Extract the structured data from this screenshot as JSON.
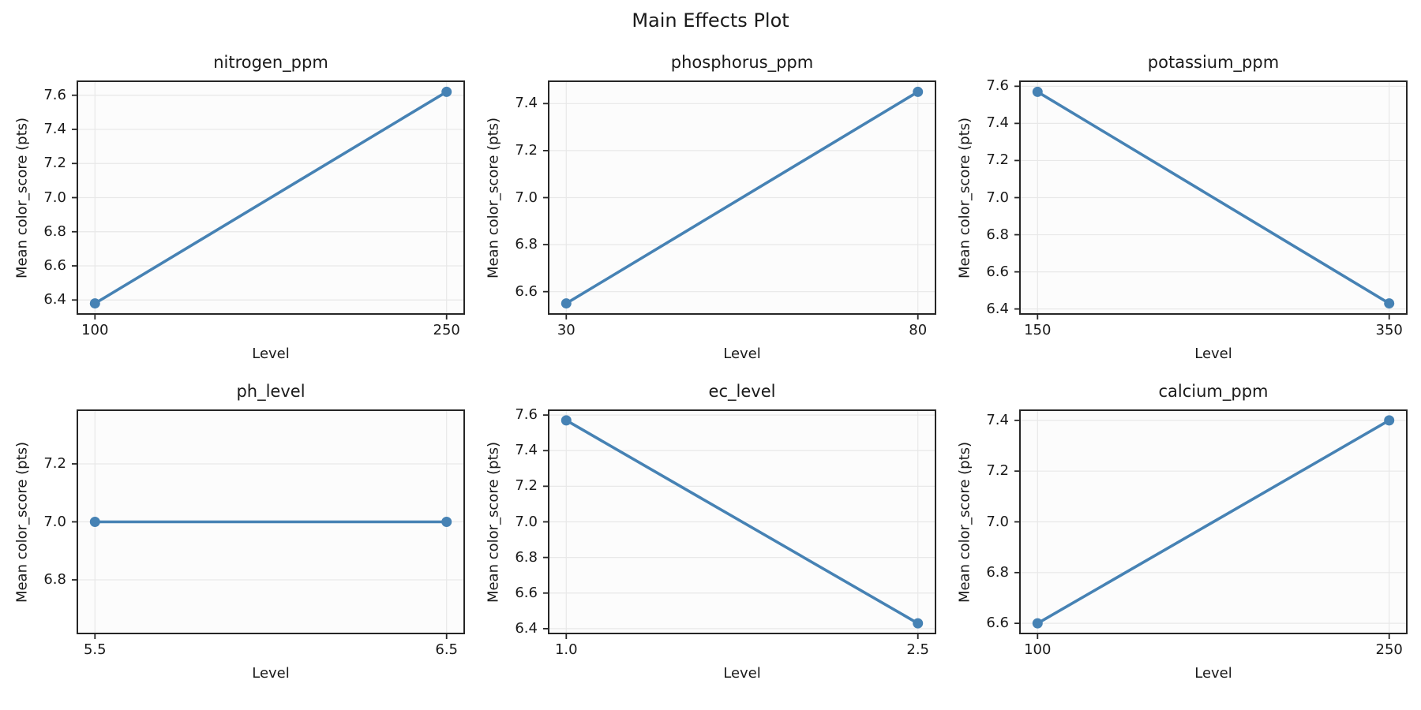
{
  "figure": {
    "suptitle": "Main Effects Plot"
  },
  "style": {
    "line_color": "#4682B4",
    "grid_color": "#e8e8e8",
    "spine_color": "#262626",
    "axes_bg": "#fcfcfc",
    "text_color": "#1a1a1a"
  },
  "chart_data": [
    {
      "type": "line",
      "title": "nitrogen_ppm",
      "xlabel": "Level",
      "ylabel": "Mean color_score (pts)",
      "x_tick_labels": [
        "100",
        "250"
      ],
      "x_values": [
        100,
        250
      ],
      "y_values": [
        6.38,
        7.62
      ],
      "yticks": [
        6.4,
        6.6,
        6.8,
        7.0,
        7.2,
        7.4,
        7.6
      ],
      "ytick_labels": [
        "6.4",
        "6.6",
        "6.8",
        "7.0",
        "7.2",
        "7.4",
        "7.6"
      ],
      "ylim": [
        6.318,
        7.682
      ],
      "grid": true,
      "legend": null
    },
    {
      "type": "line",
      "title": "phosphorus_ppm",
      "xlabel": "Level",
      "ylabel": "Mean color_score (pts)",
      "x_tick_labels": [
        "30",
        "80"
      ],
      "x_values": [
        30,
        80
      ],
      "y_values": [
        6.55,
        7.45
      ],
      "yticks": [
        6.6,
        6.8,
        7.0,
        7.2,
        7.4
      ],
      "ytick_labels": [
        "6.6",
        "6.8",
        "7.0",
        "7.2",
        "7.4"
      ],
      "ylim": [
        6.505,
        7.495
      ],
      "grid": true,
      "legend": null
    },
    {
      "type": "line",
      "title": "potassium_ppm",
      "xlabel": "Level",
      "ylabel": "Mean color_score (pts)",
      "x_tick_labels": [
        "150",
        "350"
      ],
      "x_values": [
        150,
        350
      ],
      "y_values": [
        7.57,
        6.43
      ],
      "yticks": [
        6.4,
        6.6,
        6.8,
        7.0,
        7.2,
        7.4,
        7.6
      ],
      "ytick_labels": [
        "6.4",
        "6.6",
        "6.8",
        "7.0",
        "7.2",
        "7.4",
        "7.6"
      ],
      "ylim": [
        6.373,
        7.627
      ],
      "grid": true,
      "legend": null
    },
    {
      "type": "line",
      "title": "ph_level",
      "xlabel": "Level",
      "ylabel": "Mean color_score (pts)",
      "x_tick_labels": [
        "5.5",
        "6.5"
      ],
      "x_values": [
        5.5,
        6.5
      ],
      "y_values": [
        7.0,
        7.0
      ],
      "yticks": [
        6.8,
        7.0,
        7.2
      ],
      "ytick_labels": [
        "6.8",
        "7.0",
        "7.2"
      ],
      "ylim": [
        6.615,
        7.385
      ],
      "grid": true,
      "legend": null
    },
    {
      "type": "line",
      "title": "ec_level",
      "xlabel": "Level",
      "ylabel": "Mean color_score (pts)",
      "x_tick_labels": [
        "1.0",
        "2.5"
      ],
      "x_values": [
        1.0,
        2.5
      ],
      "y_values": [
        7.57,
        6.43
      ],
      "yticks": [
        6.4,
        6.6,
        6.8,
        7.0,
        7.2,
        7.4,
        7.6
      ],
      "ytick_labels": [
        "6.4",
        "6.6",
        "6.8",
        "7.0",
        "7.2",
        "7.4",
        "7.6"
      ],
      "ylim": [
        6.373,
        7.627
      ],
      "grid": true,
      "legend": null
    },
    {
      "type": "line",
      "title": "calcium_ppm",
      "xlabel": "Level",
      "ylabel": "Mean color_score (pts)",
      "x_tick_labels": [
        "100",
        "250"
      ],
      "x_values": [
        100,
        250
      ],
      "y_values": [
        6.6,
        7.4
      ],
      "yticks": [
        6.6,
        6.8,
        7.0,
        7.2,
        7.4
      ],
      "ytick_labels": [
        "6.6",
        "6.8",
        "7.0",
        "7.2",
        "7.4"
      ],
      "ylim": [
        6.56,
        7.44
      ],
      "grid": true,
      "legend": null
    }
  ]
}
